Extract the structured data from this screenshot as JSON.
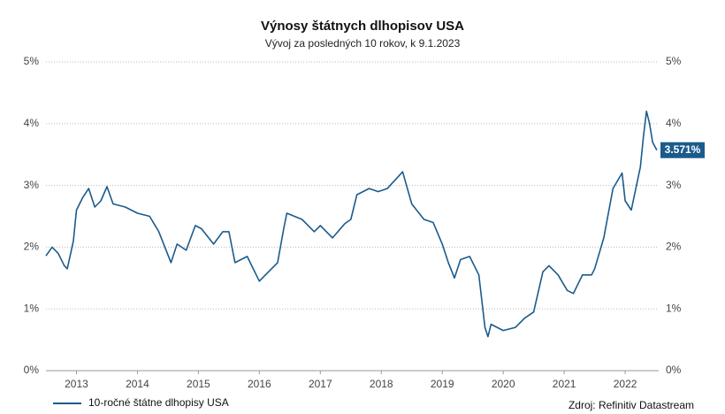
{
  "chart_data": {
    "type": "line",
    "title": "Výnosy štátnych dlhopisov USA",
    "subtitle": "Vývoj za posledných 10 rokov, k 9.1.2023",
    "source": "Zdroj: Refinitiv Datastream",
    "x": [
      2013.0,
      2013.1,
      2013.2,
      2013.3,
      2013.35,
      2013.45,
      2013.5,
      2013.6,
      2013.7,
      2013.8,
      2013.9,
      2014.0,
      2014.1,
      2014.3,
      2014.5,
      2014.7,
      2014.85,
      2015.05,
      2015.15,
      2015.3,
      2015.45,
      2015.55,
      2015.75,
      2015.9,
      2016.0,
      2016.1,
      2016.3,
      2016.5,
      2016.6,
      2016.8,
      2016.9,
      2016.95,
      2017.2,
      2017.4,
      2017.5,
      2017.7,
      2017.9,
      2018.0,
      2018.1,
      2018.3,
      2018.45,
      2018.6,
      2018.85,
      2019.0,
      2019.2,
      2019.35,
      2019.5,
      2019.6,
      2019.7,
      2019.8,
      2019.95,
      2020.1,
      2020.2,
      2020.25,
      2020.3,
      2020.5,
      2020.7,
      2020.85,
      2021.0,
      2021.15,
      2021.25,
      2021.4,
      2021.55,
      2021.65,
      2021.8,
      2021.95,
      2022.0,
      2022.15,
      2022.3,
      2022.45,
      2022.5,
      2022.6,
      2022.75,
      2022.8,
      2022.85,
      2022.9,
      2022.95,
      2023.02
    ],
    "series": [
      {
        "name": "10-ročné štátne dlhopisy USA",
        "color": "#1b5b8c",
        "values": [
          1.86,
          2.0,
          1.9,
          1.7,
          1.65,
          2.1,
          2.6,
          2.8,
          2.95,
          2.65,
          2.75,
          2.98,
          2.7,
          2.65,
          2.55,
          2.5,
          2.25,
          1.75,
          2.05,
          1.95,
          2.35,
          2.3,
          2.05,
          2.25,
          2.25,
          1.75,
          1.85,
          1.45,
          1.55,
          1.75,
          2.3,
          2.55,
          2.45,
          2.25,
          2.35,
          2.15,
          2.38,
          2.45,
          2.85,
          2.95,
          2.9,
          2.95,
          3.22,
          2.7,
          2.45,
          2.4,
          2.05,
          1.75,
          1.5,
          1.8,
          1.85,
          1.55,
          0.7,
          0.55,
          0.75,
          0.65,
          0.7,
          0.85,
          0.95,
          1.6,
          1.7,
          1.55,
          1.3,
          1.25,
          1.55,
          1.55,
          1.65,
          2.15,
          2.95,
          3.2,
          2.75,
          2.6,
          3.3,
          3.8,
          4.2,
          4.0,
          3.7,
          3.571
        ],
        "value_labels": [
          null,
          null,
          null,
          null,
          null,
          null,
          null,
          null,
          null,
          null,
          null,
          null,
          null,
          null,
          null,
          null,
          null,
          null,
          null,
          null,
          null,
          null,
          null,
          null,
          null,
          null,
          null,
          null,
          null,
          null,
          null,
          null,
          null,
          null,
          null,
          null,
          null,
          null,
          null,
          null,
          null,
          null,
          null,
          null,
          null,
          null,
          null,
          null,
          null,
          null,
          null,
          null,
          null,
          null,
          null,
          null,
          null,
          null,
          null,
          null,
          null,
          null,
          null,
          null,
          null,
          null,
          null,
          null,
          null,
          null,
          null,
          null,
          null,
          null,
          null,
          null,
          null,
          "3.571%"
        ]
      }
    ],
    "xlim": [
      2013.0,
      2023.05
    ],
    "xticks": [
      {
        "value": 2013.5,
        "label": "2013"
      },
      {
        "value": 2014.5,
        "label": "2014"
      },
      {
        "value": 2015.5,
        "label": "2015"
      },
      {
        "value": 2016.5,
        "label": "2016"
      },
      {
        "value": 2017.5,
        "label": "2017"
      },
      {
        "value": 2018.5,
        "label": "2018"
      },
      {
        "value": 2019.5,
        "label": "2019"
      },
      {
        "value": 2020.5,
        "label": "2020"
      },
      {
        "value": 2021.5,
        "label": "2021"
      },
      {
        "value": 2022.5,
        "label": "2022"
      }
    ],
    "ylim": [
      0,
      5
    ],
    "yticks": [
      {
        "value": 0,
        "label": "0%"
      },
      {
        "value": 1,
        "label": "1%"
      },
      {
        "value": 2,
        "label": "2%"
      },
      {
        "value": 3,
        "label": "3%"
      },
      {
        "value": 4,
        "label": "4%"
      },
      {
        "value": 5,
        "label": "5%"
      }
    ],
    "grid": true,
    "legend": "bottom-left"
  }
}
